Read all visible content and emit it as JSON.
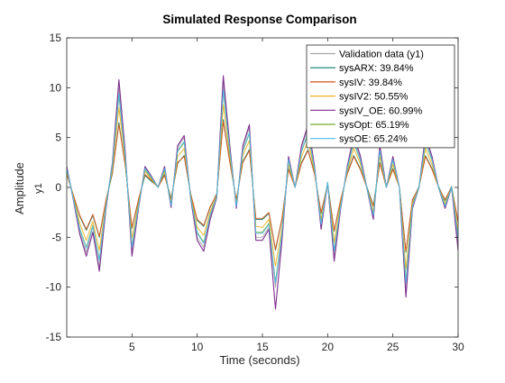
{
  "chart_data": {
    "type": "line",
    "title": "Simulated Response Comparison",
    "xlabel": "Time (seconds)",
    "ylabel": "Amplitude",
    "ylabel_channel": "y1",
    "xlim": [
      0,
      30
    ],
    "ylim": [
      -15,
      15
    ],
    "xticks": [
      5,
      10,
      15,
      20,
      25,
      30
    ],
    "yticks": [
      -15,
      -10,
      -5,
      0,
      5,
      10,
      15
    ],
    "grid": false,
    "legend_position": "top-right",
    "x": [
      0,
      0.5,
      1,
      1.5,
      2,
      2.5,
      3,
      3.5,
      4,
      4.5,
      5,
      5.5,
      6,
      6.5,
      7,
      7.5,
      8,
      8.5,
      9,
      9.5,
      10,
      10.5,
      11,
      11.5,
      12,
      12.5,
      13,
      13.5,
      14,
      14.5,
      15,
      15.5,
      16,
      16.5,
      17,
      17.5,
      18,
      18.5,
      19,
      19.5,
      20,
      20.5,
      21,
      21.5,
      22,
      22.5,
      23,
      23.5,
      24,
      24.5,
      25,
      25.5,
      26,
      26.5,
      27,
      27.5,
      28,
      28.5,
      29,
      29.5,
      30
    ],
    "series": [
      {
        "name": "Validation data (y1)",
        "color": "#a9a9a9",
        "values": [
          2.0,
          -1.0,
          -4.5,
          -6.5,
          -4.0,
          -8.0,
          -2.0,
          2.5,
          10.0,
          3.0,
          -6.5,
          -2.0,
          2.0,
          1.0,
          0.0,
          2.0,
          -2.0,
          4.0,
          5.0,
          -1.0,
          -5.0,
          -6.0,
          -3.0,
          -1.0,
          10.5,
          4.0,
          -2.0,
          4.0,
          6.0,
          -5.0,
          -5.0,
          -4.0,
          -10.0,
          -5.0,
          3.0,
          0.0,
          4.0,
          6.0,
          2.0,
          -4.0,
          0.5,
          -7.0,
          -2.0,
          2.0,
          5.0,
          3.0,
          0.0,
          -3.0,
          4.0,
          0.0,
          3.0,
          0.0,
          -10.5,
          -2.0,
          0.0,
          5.0,
          3.0,
          0.0,
          -2.0,
          0.0,
          -5.5
        ]
      },
      {
        "name": "sysARX: 39.84%",
        "color": "#0a7d66",
        "values": [
          1.4,
          -0.8,
          -2.9,
          -4.3,
          -2.8,
          -5.0,
          -1.4,
          1.4,
          6.5,
          2.0,
          -4.1,
          -1.3,
          1.2,
          0.6,
          0.1,
          1.3,
          -1.1,
          2.4,
          3.2,
          -0.7,
          -3.3,
          -3.9,
          -2.0,
          -0.6,
          6.8,
          2.6,
          -1.3,
          2.6,
          3.8,
          -3.2,
          -3.2,
          -2.6,
          -6.3,
          -3.2,
          1.9,
          0.1,
          2.5,
          3.8,
          1.4,
          -2.6,
          0.4,
          -4.4,
          -1.3,
          1.4,
          3.2,
          1.9,
          0.1,
          -1.8,
          2.5,
          0.1,
          1.9,
          0.1,
          -6.5,
          -1.3,
          0.1,
          3.2,
          1.9,
          0.1,
          -1.3,
          0.1,
          -3.5
        ]
      },
      {
        "name": "sysIV: 39.84%",
        "color": "#d95319",
        "values": [
          1.3,
          -0.7,
          -2.8,
          -4.2,
          -2.7,
          -4.9,
          -1.3,
          1.5,
          6.3,
          2.1,
          -4.0,
          -1.2,
          1.3,
          0.7,
          0.0,
          1.2,
          -1.2,
          2.5,
          3.1,
          -0.6,
          -3.2,
          -3.8,
          -1.9,
          -0.7,
          6.6,
          2.5,
          -1.2,
          2.5,
          3.7,
          -3.1,
          -3.1,
          -2.5,
          -6.2,
          -3.1,
          1.8,
          0.0,
          2.4,
          3.7,
          1.3,
          -2.5,
          0.3,
          -4.3,
          -1.2,
          1.3,
          3.1,
          1.8,
          0.0,
          -1.9,
          2.4,
          0.0,
          1.8,
          0.0,
          -6.4,
          -1.2,
          0.0,
          3.1,
          1.8,
          0.0,
          -1.2,
          0.0,
          -3.4
        ]
      },
      {
        "name": "sysIV2: 50.55%",
        "color": "#edb120",
        "values": [
          1.6,
          -0.9,
          -3.6,
          -5.3,
          -3.4,
          -6.3,
          -1.7,
          1.8,
          8.0,
          2.5,
          -5.1,
          -1.6,
          1.6,
          0.8,
          0.0,
          1.6,
          -1.5,
          3.1,
          3.9,
          -0.8,
          -4.0,
          -4.8,
          -2.4,
          -0.8,
          8.3,
          3.1,
          -1.6,
          3.2,
          4.7,
          -3.9,
          -4.0,
          -3.2,
          -7.9,
          -4.0,
          2.3,
          0.0,
          3.1,
          4.7,
          1.6,
          -3.2,
          0.4,
          -5.5,
          -1.6,
          1.6,
          3.9,
          2.4,
          0.0,
          -2.4,
          3.1,
          0.0,
          2.3,
          0.0,
          -8.2,
          -1.6,
          0.0,
          3.9,
          2.3,
          0.0,
          -1.6,
          0.0,
          -4.3
        ]
      },
      {
        "name": "sysIV_OE:  60.99%",
        "color": "#7e2f8e",
        "values": [
          2.1,
          -1.2,
          -4.7,
          -6.9,
          -4.5,
          -8.4,
          -2.2,
          2.4,
          10.8,
          3.3,
          -6.9,
          -2.1,
          2.1,
          1.1,
          0.0,
          2.1,
          -2.0,
          4.2,
          5.2,
          -1.1,
          -5.3,
          -6.4,
          -3.2,
          -1.0,
          11.2,
          4.2,
          -2.1,
          4.2,
          6.3,
          -5.3,
          -5.3,
          -4.2,
          -12.2,
          -5.3,
          3.1,
          0.0,
          4.2,
          6.3,
          2.1,
          -4.2,
          0.5,
          -7.4,
          -2.1,
          2.1,
          5.2,
          3.2,
          0.0,
          -3.2,
          4.2,
          0.0,
          3.1,
          0.0,
          -11.0,
          -2.1,
          0.0,
          5.2,
          3.1,
          0.0,
          -2.1,
          0.0,
          -6.3
        ]
      },
      {
        "name": "sysOpt: 65.19%",
        "color": "#77ac30",
        "values": [
          1.8,
          -1.0,
          -4.1,
          -6.0,
          -3.8,
          -7.2,
          -1.9,
          2.1,
          9.2,
          2.8,
          -5.9,
          -1.8,
          1.8,
          0.9,
          0.0,
          1.8,
          -1.7,
          3.6,
          4.5,
          -0.9,
          -4.5,
          -5.5,
          -2.7,
          -0.9,
          9.6,
          3.6,
          -1.8,
          3.6,
          5.4,
          -4.5,
          -4.5,
          -3.6,
          -9.5,
          -4.5,
          2.7,
          0.0,
          3.6,
          5.4,
          1.8,
          -3.6,
          0.5,
          -6.3,
          -1.8,
          1.8,
          4.5,
          2.7,
          0.0,
          -2.7,
          3.6,
          0.0,
          2.7,
          0.0,
          -9.4,
          -1.8,
          0.0,
          4.5,
          2.7,
          0.0,
          -1.8,
          0.0,
          -5.0
        ]
      },
      {
        "name": "sysOE: 65.24%",
        "color": "#4dbeee",
        "values": [
          1.9,
          -1.1,
          -4.2,
          -6.1,
          -3.9,
          -7.3,
          -1.9,
          2.2,
          9.4,
          2.9,
          -6.0,
          -1.9,
          1.9,
          1.0,
          0.0,
          1.9,
          -1.8,
          3.7,
          4.6,
          -1.0,
          -4.6,
          -5.6,
          -2.8,
          -0.9,
          9.8,
          3.7,
          -1.9,
          3.7,
          5.5,
          -4.6,
          -4.6,
          -3.7,
          -9.6,
          -4.6,
          2.8,
          0.0,
          3.7,
          5.5,
          1.9,
          -3.7,
          0.5,
          -6.4,
          -1.9,
          1.9,
          4.6,
          2.8,
          0.0,
          -2.8,
          3.7,
          0.0,
          2.8,
          0.0,
          -9.6,
          -1.9,
          0.0,
          4.6,
          2.8,
          0.0,
          -1.9,
          0.0,
          -5.1
        ]
      }
    ]
  }
}
